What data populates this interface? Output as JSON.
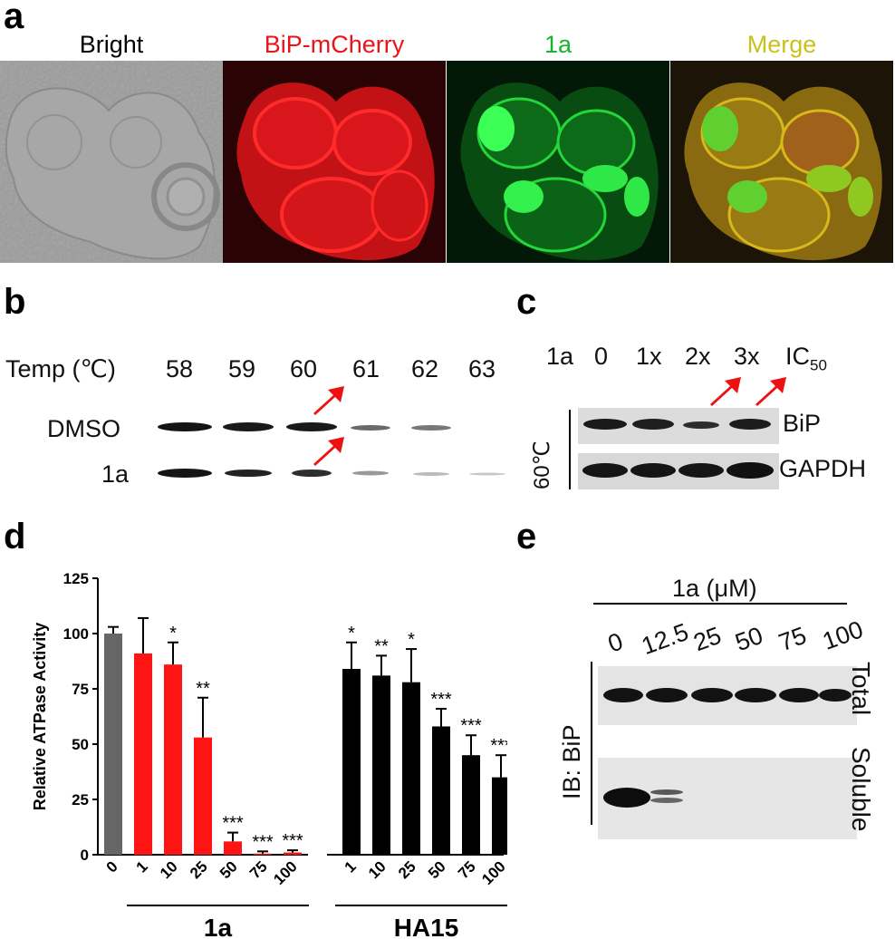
{
  "panels": {
    "a": "a",
    "b": "b",
    "c": "c",
    "d": "d",
    "e": "e"
  },
  "panel_a": {
    "titles": [
      "Bright",
      "BiP-mCherry",
      "1a",
      "Merge"
    ],
    "colors": {
      "bright": "#000000",
      "red": "#e8141a",
      "green": "#17b52b",
      "merge": "#c8c21a"
    }
  },
  "panel_b": {
    "temp_label": "Temp (℃)",
    "temps": [
      "58",
      "59",
      "60",
      "61",
      "62",
      "63"
    ],
    "rows": [
      "DMSO",
      "1a"
    ]
  },
  "panel_c": {
    "compound": "1a",
    "doses": [
      "0",
      "1x",
      "2x",
      "3x"
    ],
    "ic": "IC",
    "ic_sub": "50",
    "temp": "60℃",
    "rows": [
      "BiP",
      "GAPDH"
    ]
  },
  "panel_e": {
    "header": "1a (μM)",
    "concentrations": [
      "0",
      "12.5",
      "25",
      "50",
      "75",
      "100"
    ],
    "ib_label": "IB: BiP",
    "rows": [
      "Total",
      "Soluble"
    ]
  },
  "chart_data": {
    "type": "bar",
    "ylabel": "Relative ATPase Activity",
    "ylim": [
      0,
      125
    ],
    "yticks": [
      "0",
      "25",
      "50",
      "75",
      "100",
      "125"
    ],
    "groups": [
      {
        "name": "",
        "categories": [
          "0"
        ],
        "values": [
          100
        ],
        "errors": [
          3
        ],
        "stars": [
          ""
        ],
        "color": "#666666"
      },
      {
        "name": "1a",
        "categories": [
          "1",
          "10",
          "25",
          "50",
          "75",
          "100"
        ],
        "values": [
          91,
          86,
          53,
          6,
          0.5,
          1
        ],
        "errors": [
          16,
          10,
          18,
          4,
          1,
          1
        ],
        "stars": [
          "",
          "*",
          "**",
          "***",
          "***",
          "***"
        ],
        "color": "#ff1414"
      },
      {
        "name": "HA15",
        "categories": [
          "1",
          "10",
          "25",
          "50",
          "75",
          "100"
        ],
        "values": [
          84,
          81,
          78,
          58,
          45,
          35
        ],
        "errors": [
          12,
          9,
          15,
          8,
          9,
          10
        ],
        "stars": [
          "*",
          "**",
          "*",
          "***",
          "***",
          "***"
        ],
        "color": "#000000"
      }
    ]
  }
}
